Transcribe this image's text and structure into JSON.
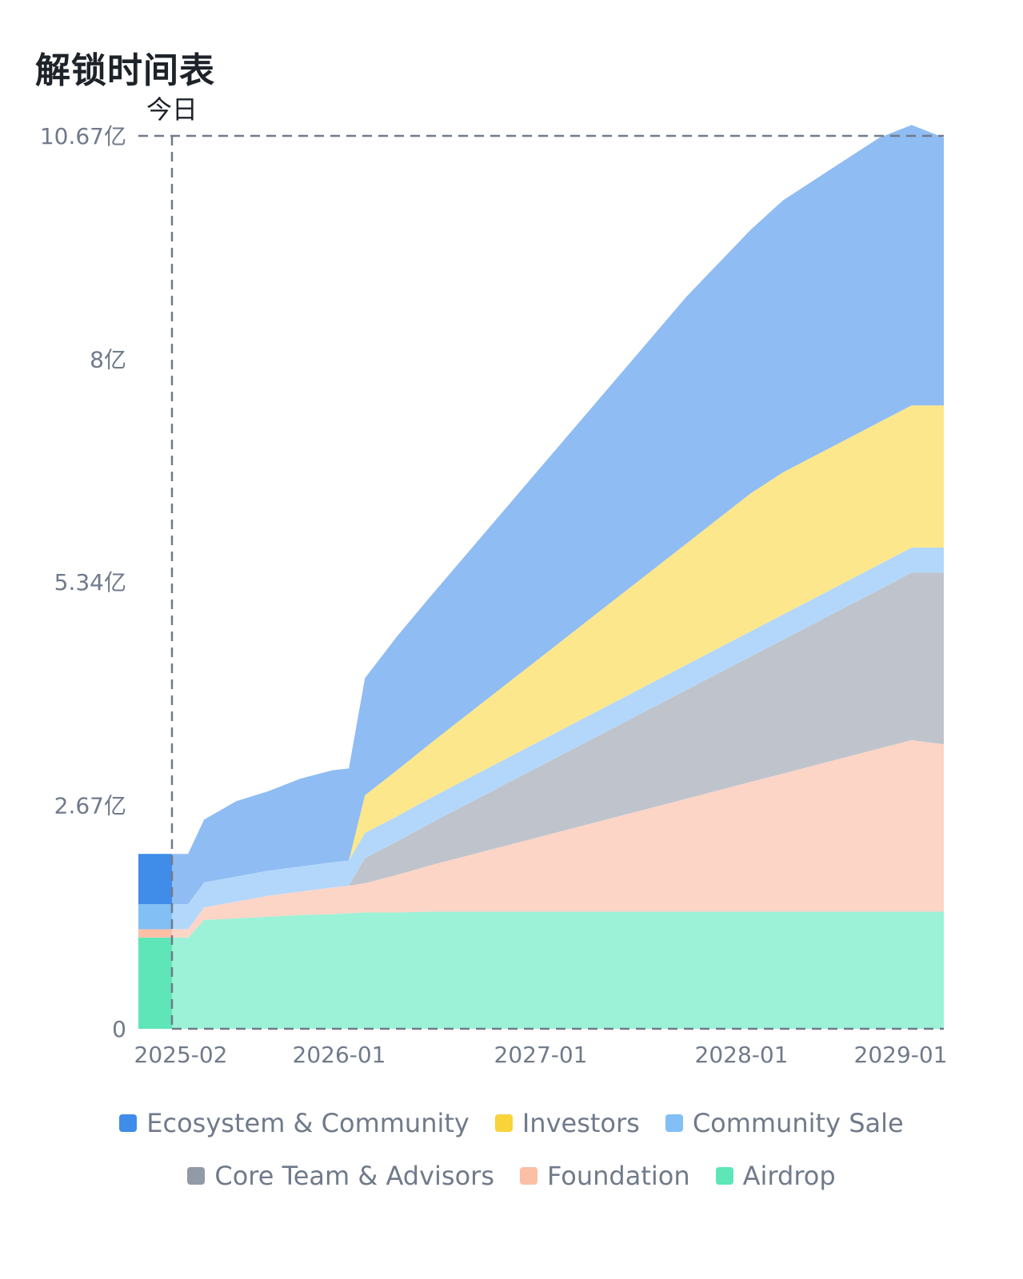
{
  "title": "解锁时间表",
  "today_label": "今日",
  "chart_data": {
    "type": "area",
    "stacked": true,
    "title": "解锁时间表",
    "xlabel": "",
    "ylabel": "",
    "x_ticks": [
      "2025-02",
      "2026-01",
      "2027-01",
      "2028-01",
      "2029-01"
    ],
    "y_ticks": [
      "0",
      "2.67亿",
      "5.34亿",
      "8亿",
      "10.67亿"
    ],
    "ylim": [
      0,
      10.67
    ],
    "y_unit": "亿",
    "x": [
      "2025-01",
      "2025-02",
      "2025-03",
      "2025-05",
      "2025-07",
      "2025-09",
      "2025-11",
      "2025-12",
      "2026-01",
      "2026-03",
      "2026-05",
      "2026-07",
      "2026-09",
      "2026-11",
      "2027-01",
      "2027-03",
      "2027-05",
      "2027-07",
      "2027-09",
      "2027-11",
      "2028-01",
      "2028-03",
      "2028-05",
      "2028-07",
      "2028-09",
      "2028-11",
      "2029-01"
    ],
    "series": [
      {
        "name": "Airdrop",
        "color": "#9cf2d6",
        "values": [
          1.09,
          1.09,
          1.3,
          1.32,
          1.34,
          1.36,
          1.37,
          1.38,
          1.39,
          1.39,
          1.4,
          1.4,
          1.4,
          1.4,
          1.4,
          1.4,
          1.4,
          1.4,
          1.4,
          1.4,
          1.4,
          1.4,
          1.4,
          1.4,
          1.4,
          1.4,
          1.4
        ]
      },
      {
        "name": "Foundation",
        "color": "#fcd5c7",
        "values": [
          0.1,
          0.1,
          0.15,
          0.2,
          0.25,
          0.28,
          0.32,
          0.33,
          0.35,
          0.45,
          0.55,
          0.65,
          0.75,
          0.85,
          0.95,
          1.05,
          1.15,
          1.25,
          1.35,
          1.45,
          1.55,
          1.65,
          1.75,
          1.85,
          1.95,
          2.05,
          2.0
        ]
      },
      {
        "name": "Core Team & Advisors",
        "color": "#bfc4cc",
        "values": [
          0,
          0,
          0,
          0,
          0,
          0,
          0,
          0,
          0.3,
          0.4,
          0.5,
          0.6,
          0.7,
          0.8,
          0.9,
          1.0,
          1.1,
          1.2,
          1.3,
          1.4,
          1.5,
          1.6,
          1.7,
          1.8,
          1.9,
          2.0,
          2.05
        ]
      },
      {
        "name": "Community Sale",
        "color": "#b3d7fb",
        "values": [
          0.3,
          0.3,
          0.3,
          0.3,
          0.3,
          0.3,
          0.3,
          0.3,
          0.3,
          0.3,
          0.3,
          0.3,
          0.3,
          0.3,
          0.3,
          0.3,
          0.3,
          0.3,
          0.3,
          0.3,
          0.3,
          0.3,
          0.3,
          0.3,
          0.3,
          0.3,
          0.3
        ]
      },
      {
        "name": "Investors",
        "color": "#fce78c",
        "values": [
          0,
          0,
          0,
          0,
          0,
          0,
          0,
          0,
          0.45,
          0.55,
          0.65,
          0.75,
          0.85,
          0.95,
          1.05,
          1.15,
          1.25,
          1.35,
          1.45,
          1.55,
          1.65,
          1.7,
          1.7,
          1.7,
          1.7,
          1.7,
          1.7
        ]
      },
      {
        "name": "Ecosystem & Community",
        "color": "#8fbcf3",
        "values": [
          0.6,
          0.6,
          0.75,
          0.9,
          0.95,
          1.05,
          1.1,
          1.1,
          1.4,
          1.6,
          1.75,
          1.9,
          2.05,
          2.2,
          2.35,
          2.5,
          2.65,
          2.8,
          2.95,
          3.05,
          3.15,
          3.25,
          3.3,
          3.35,
          3.4,
          3.35,
          3.2
        ]
      }
    ],
    "legend_position": "bottom",
    "grid": false
  },
  "legend": {
    "row1": [
      {
        "label": "Ecosystem & Community",
        "color": "#3f8ce9"
      },
      {
        "label": "Investors",
        "color": "#f8d33a"
      },
      {
        "label": "Community Sale",
        "color": "#81bff5"
      }
    ],
    "row2": [
      {
        "label": "Core Team & Advisors",
        "color": "#929aa5"
      },
      {
        "label": "Foundation",
        "color": "#fbbfa6"
      },
      {
        "label": "Airdrop",
        "color": "#5ee6b8"
      }
    ]
  },
  "today_bar": [
    {
      "name": "Airdrop",
      "color": "#5ee6b8",
      "value": 1.09
    },
    {
      "name": "Foundation",
      "color": "#fbbfa6",
      "value": 0.1
    },
    {
      "name": "Community Sale",
      "color": "#81bff5",
      "value": 0.3
    },
    {
      "name": "Ecosystem & Community",
      "color": "#3f8ce9",
      "value": 0.6
    }
  ]
}
